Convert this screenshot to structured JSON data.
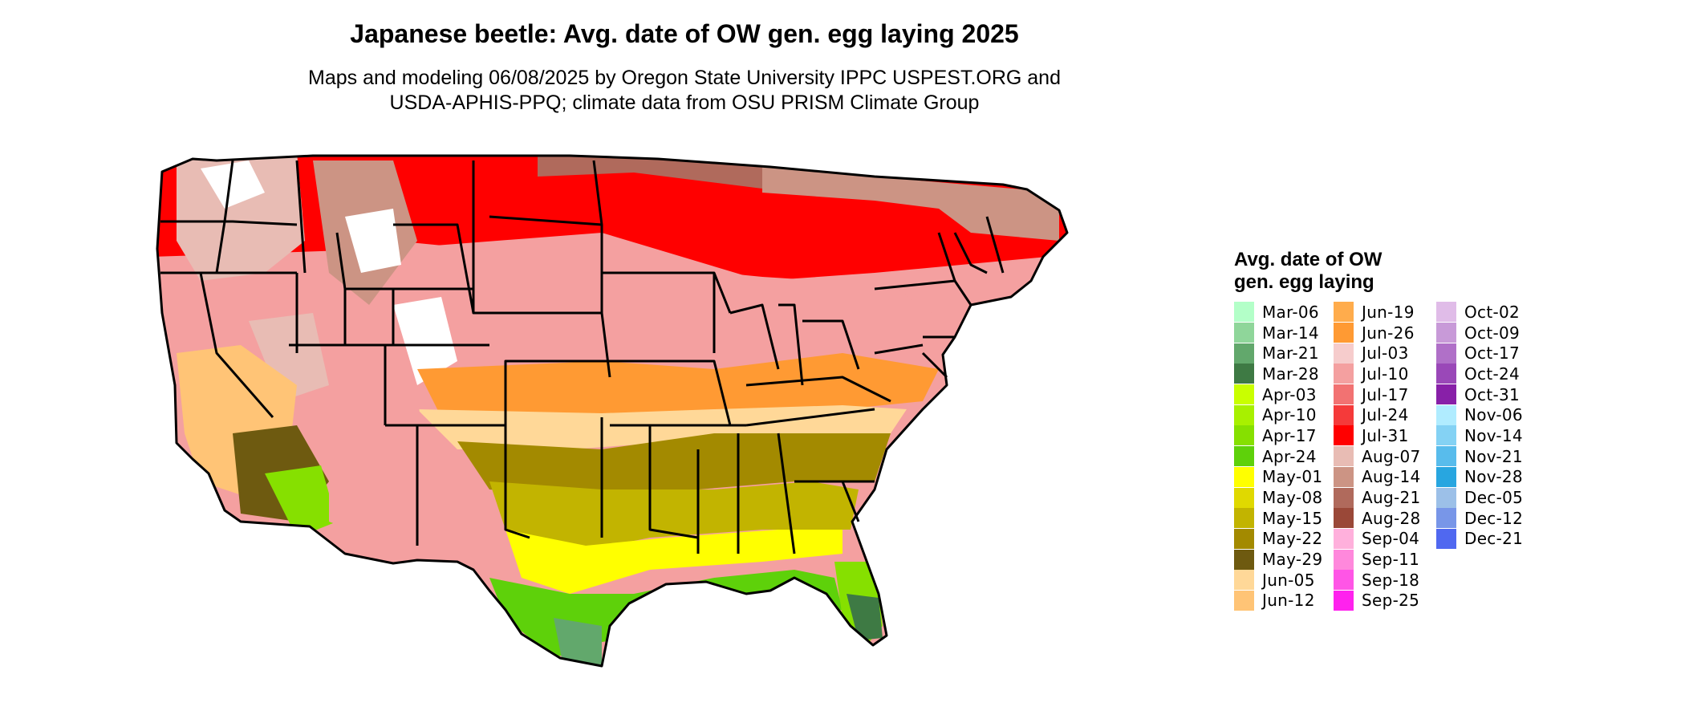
{
  "header": {
    "title": "Japanese beetle: Avg. date of OW gen. egg laying 2025",
    "subtitle_line1": "Maps and modeling 06/08/2025 by Oregon State University IPPC USPEST.ORG and",
    "subtitle_line2": "USDA-APHIS-PPQ; climate data from OSU PRISM Climate Group"
  },
  "legend": {
    "title_line1": "Avg. date of OW",
    "title_line2": "gen. egg laying",
    "items": [
      {
        "label": "Mar-06",
        "color": "#b3ffc8"
      },
      {
        "label": "Mar-14",
        "color": "#8fd69a"
      },
      {
        "label": "Mar-21",
        "color": "#62a86c"
      },
      {
        "label": "Mar-28",
        "color": "#3e7a44"
      },
      {
        "label": "Apr-03",
        "color": "#c9ff00"
      },
      {
        "label": "Apr-10",
        "color": "#a8f000"
      },
      {
        "label": "Apr-17",
        "color": "#86e000"
      },
      {
        "label": "Apr-24",
        "color": "#5ed10a"
      },
      {
        "label": "May-01",
        "color": "#ffff00"
      },
      {
        "label": "May-08",
        "color": "#e0d900"
      },
      {
        "label": "May-15",
        "color": "#c2b400"
      },
      {
        "label": "May-22",
        "color": "#a38a00"
      },
      {
        "label": "May-29",
        "color": "#6e5a10"
      },
      {
        "label": "Jun-05",
        "color": "#ffd898"
      },
      {
        "label": "Jun-12",
        "color": "#ffc476"
      },
      {
        "label": "Jun-19",
        "color": "#ffac4c"
      },
      {
        "label": "Jun-26",
        "color": "#ff9a33"
      },
      {
        "label": "Jul-03",
        "color": "#f6cccc"
      },
      {
        "label": "Jul-10",
        "color": "#f4a0a0"
      },
      {
        "label": "Jul-17",
        "color": "#f27272"
      },
      {
        "label": "Jul-24",
        "color": "#f53a3a"
      },
      {
        "label": "Jul-31",
        "color": "#ff0000"
      },
      {
        "label": "Aug-07",
        "color": "#e8bcb4"
      },
      {
        "label": "Aug-14",
        "color": "#cc9484"
      },
      {
        "label": "Aug-21",
        "color": "#b06a5c"
      },
      {
        "label": "Aug-28",
        "color": "#9a4838"
      },
      {
        "label": "Sep-04",
        "color": "#ffb0dc"
      },
      {
        "label": "Sep-11",
        "color": "#ff88dc"
      },
      {
        "label": "Sep-18",
        "color": "#ff55e6"
      },
      {
        "label": "Sep-25",
        "color": "#ff22ee"
      },
      {
        "label": "Oct-02",
        "color": "#e0bce8"
      },
      {
        "label": "Oct-09",
        "color": "#c89ad8"
      },
      {
        "label": "Oct-17",
        "color": "#b070c8"
      },
      {
        "label": "Oct-24",
        "color": "#9a48b8"
      },
      {
        "label": "Oct-31",
        "color": "#8820a8"
      },
      {
        "label": "Nov-06",
        "color": "#b0ecff"
      },
      {
        "label": "Nov-14",
        "color": "#84d2f4"
      },
      {
        "label": "Nov-21",
        "color": "#58bcec"
      },
      {
        "label": "Nov-28",
        "color": "#28a6e0"
      },
      {
        "label": "Dec-05",
        "color": "#9cc0e8"
      },
      {
        "label": "Dec-12",
        "color": "#7896e8"
      },
      {
        "label": "Dec-21",
        "color": "#5068f0"
      }
    ]
  },
  "map": {
    "background": "#ffffff",
    "state_border_color": "#000000"
  }
}
